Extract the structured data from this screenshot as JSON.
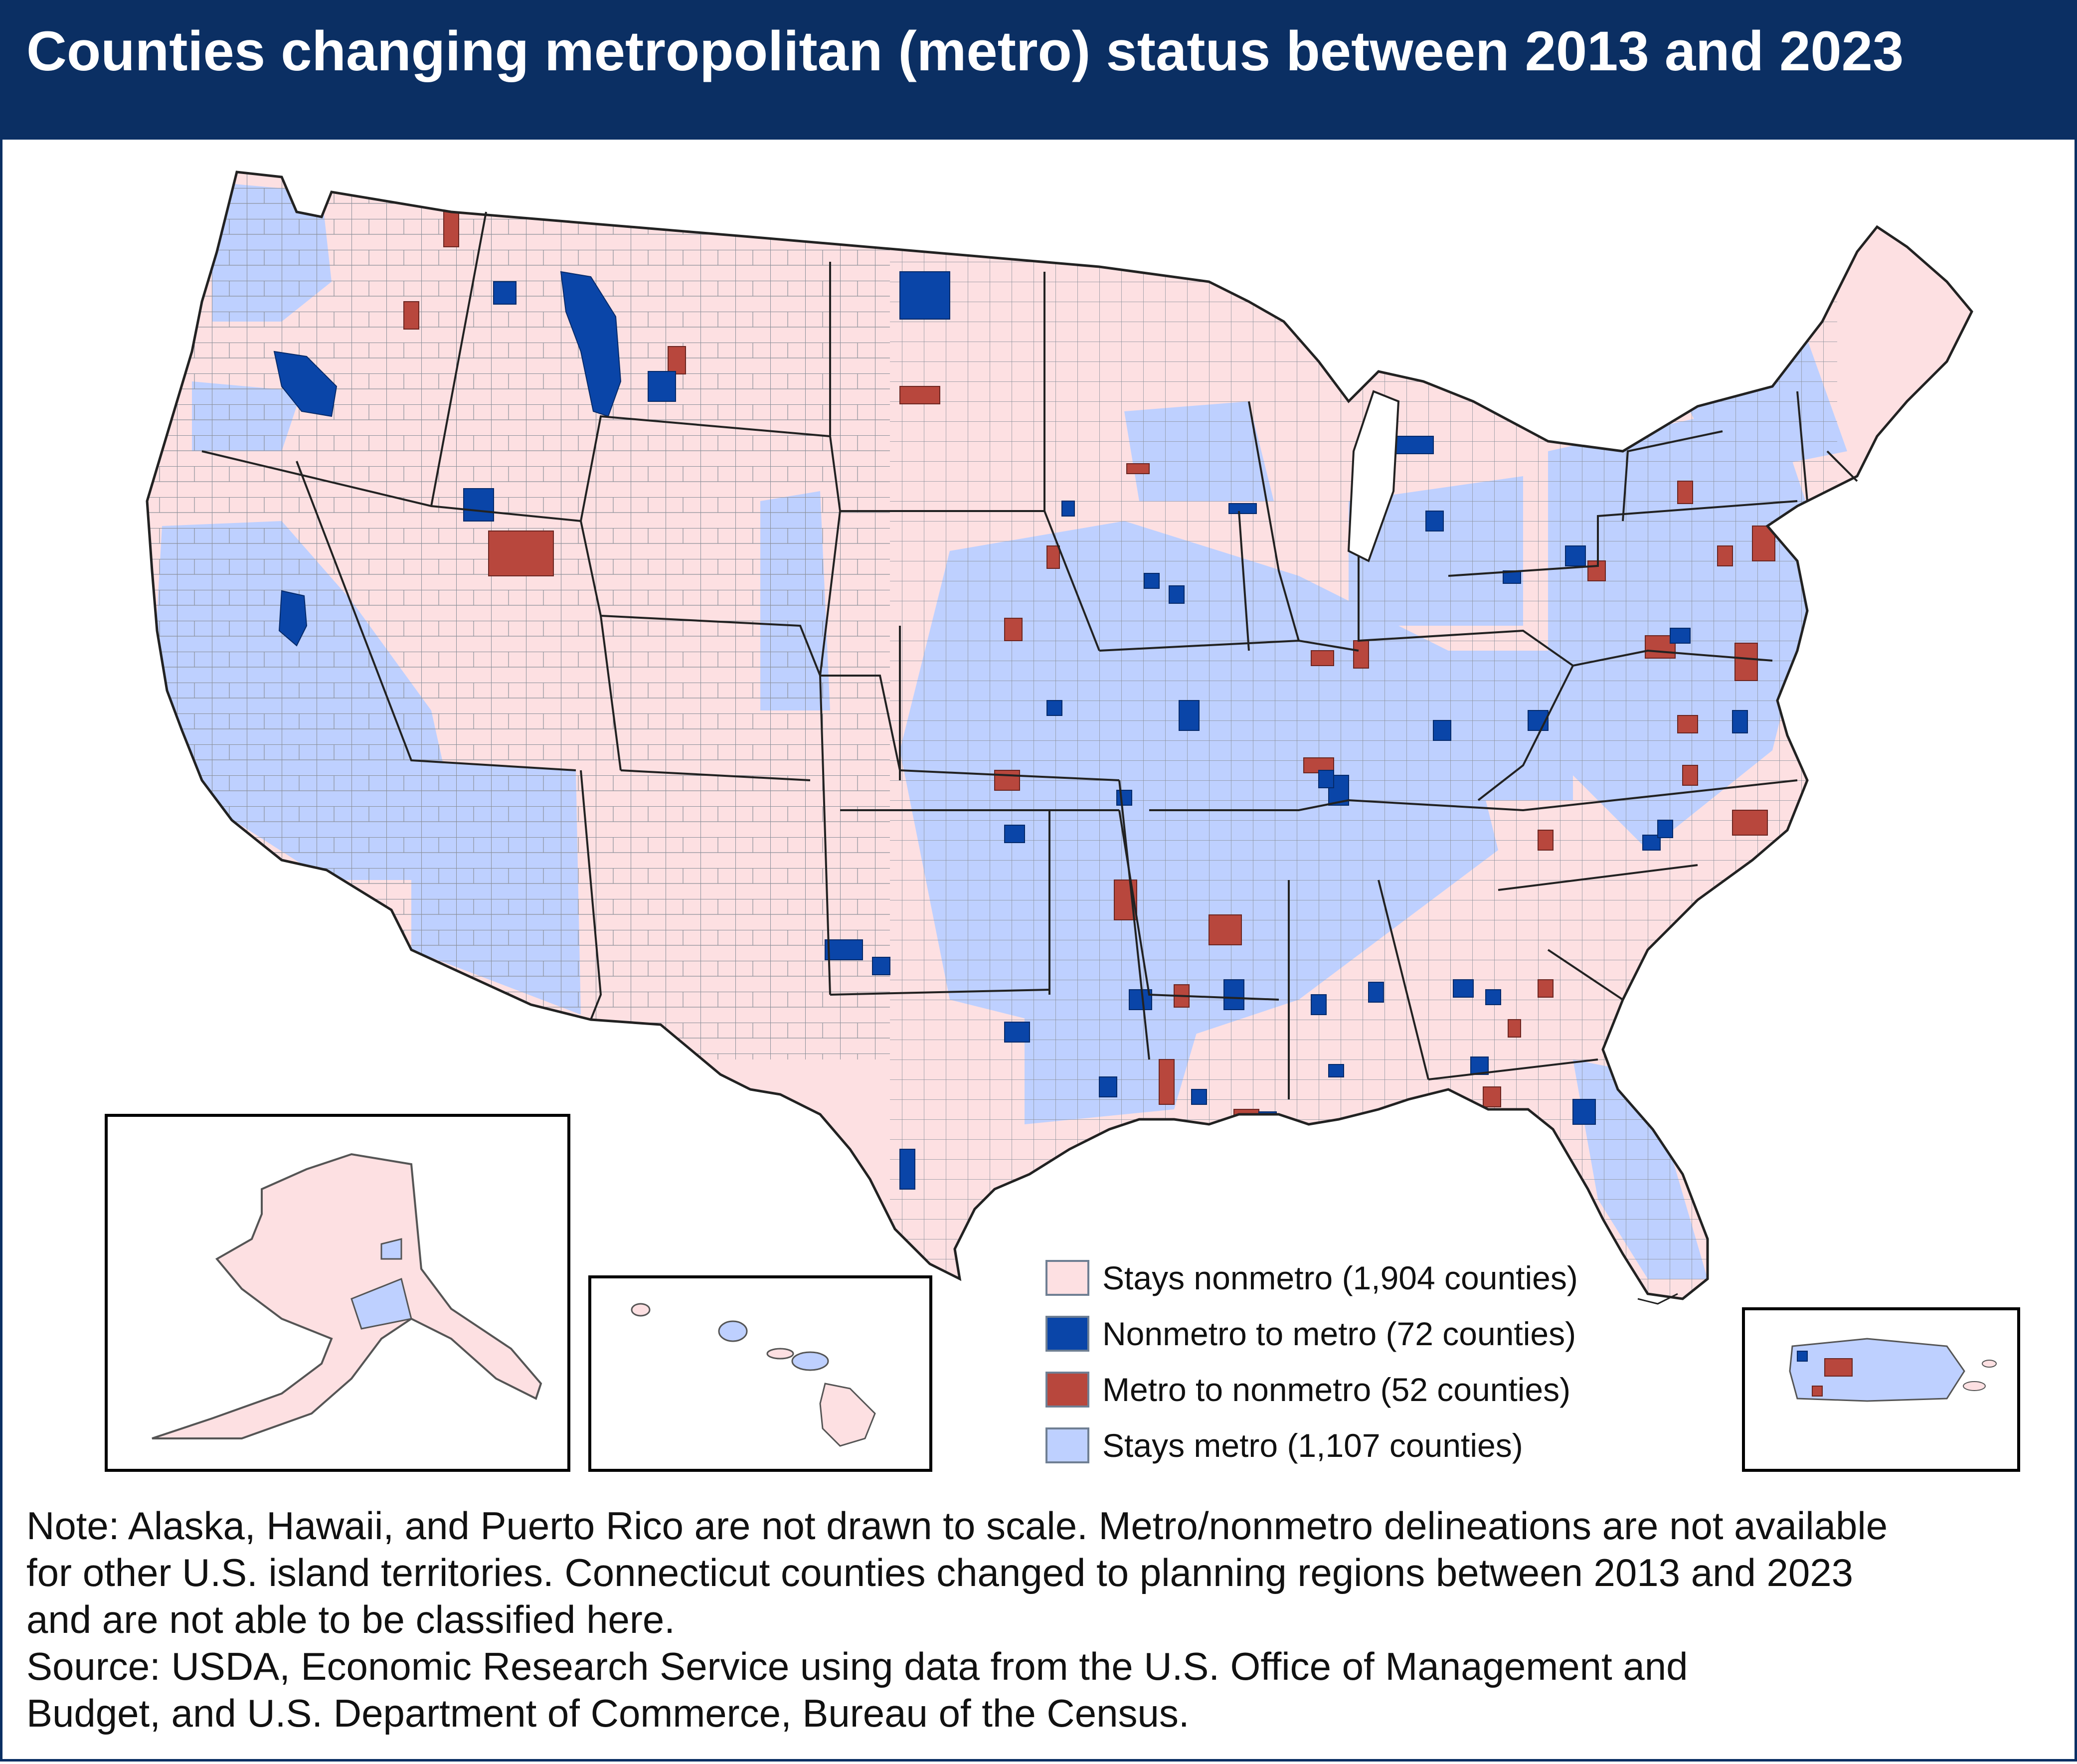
{
  "title": "Counties changing metropolitan (metro) status between 2013 and 2023",
  "colors": {
    "header_background": "#0b2f63",
    "stays_nonmetro": "#fde0e2",
    "nonmetro_to_metro": "#0a45a8",
    "metro_to_nonmetro": "#b8473d",
    "stays_metro": "#bed0ff",
    "state_boundary": "#222222",
    "county_boundary": "#8a8f99"
  },
  "legend": {
    "items": [
      {
        "category": "stays_nonmetro",
        "label": "Stays nonmetro (1,904 counties)",
        "count": 1904,
        "color": "#fde0e2"
      },
      {
        "category": "nonmetro_to_metro",
        "label": "Nonmetro to metro (72 counties)",
        "count": 72,
        "color": "#0a45a8"
      },
      {
        "category": "metro_to_nonmetro",
        "label": "Metro to nonmetro (52 counties)",
        "count": 52,
        "color": "#b8473d"
      },
      {
        "category": "stays_metro",
        "label": "Stays metro (1,107 counties)",
        "count": 1107,
        "color": "#bed0ff"
      }
    ]
  },
  "insets": [
    "Alaska",
    "Hawaii",
    "Puerto Rico"
  ],
  "notes": {
    "lines": [
      "Note: Alaska, Hawaii, and Puerto Rico are not drawn to scale. Metro/nonmetro delineations are not available",
      "for other U.S. island territories. Connecticut counties changed to planning regions between 2013 and 2023",
      "and are not able to be classified here.",
      "Source: USDA, Economic Research Service using data from the U.S. Office of Management and",
      "Budget, and U.S. Department of Commerce, Bureau of the Census."
    ]
  }
}
